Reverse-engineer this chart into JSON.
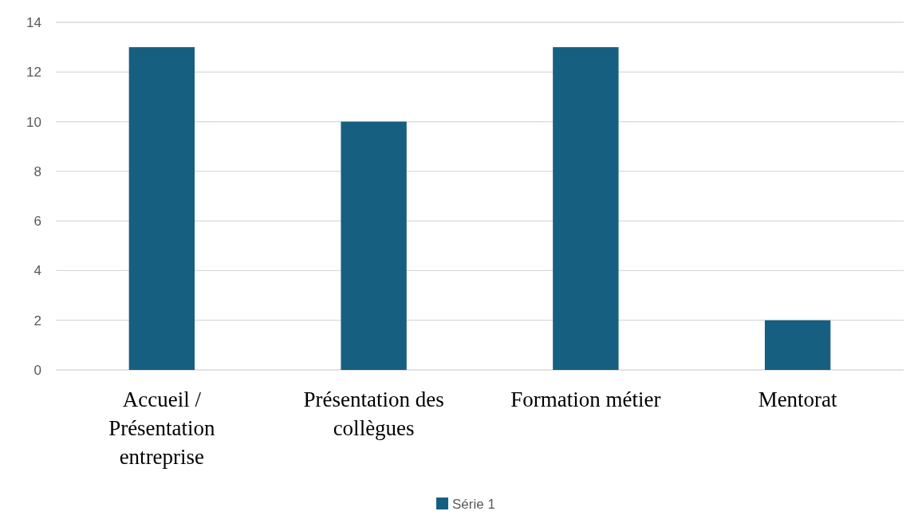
{
  "chart_data": {
    "type": "bar",
    "categories": [
      "Accueil / Présentation entreprise",
      "Présentation des collègues",
      "Formation métier",
      "Mentorat"
    ],
    "series": [
      {
        "name": "Série 1",
        "color": "#175f80",
        "values": [
          13,
          10,
          13,
          2
        ]
      }
    ],
    "ylim": [
      0,
      14
    ],
    "yticks": [
      0,
      2,
      4,
      6,
      8,
      10,
      12,
      14
    ],
    "grid": "y",
    "legend": "bottom"
  }
}
